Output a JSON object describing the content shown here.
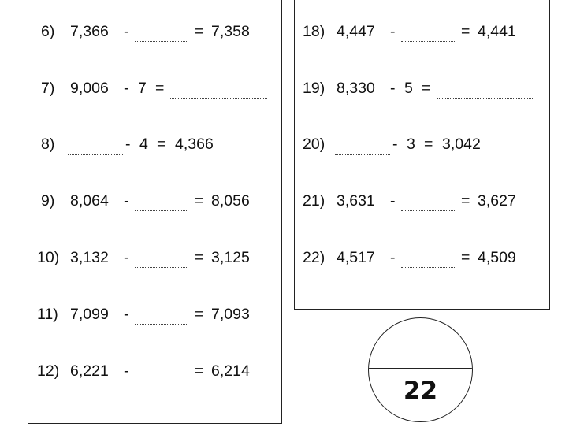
{
  "left_column": [
    {
      "number": "6)",
      "a": "7,366",
      "op": "-",
      "b": "",
      "eq": "=",
      "result": "7,358"
    },
    {
      "number": "7)",
      "a": "9,006",
      "op": "-",
      "b": "7",
      "eq": "=",
      "result": ""
    },
    {
      "number": "8)",
      "a": "",
      "op": "-",
      "b": "4",
      "eq": "=",
      "result": "4,366"
    },
    {
      "number": "9)",
      "a": "8,064",
      "op": "-",
      "b": "",
      "eq": "=",
      "result": "8,056"
    },
    {
      "number": "10)",
      "a": "3,132",
      "op": "-",
      "b": "",
      "eq": "=",
      "result": "3,125"
    },
    {
      "number": "11)",
      "a": "7,099",
      "op": "-",
      "b": "",
      "eq": "=",
      "result": "7,093"
    },
    {
      "number": "12)",
      "a": "6,221",
      "op": "-",
      "b": "",
      "eq": "=",
      "result": "6,214"
    }
  ],
  "right_column": [
    {
      "number": "18)",
      "a": "4,447",
      "op": "-",
      "b": "",
      "eq": "=",
      "result": "4,441"
    },
    {
      "number": "19)",
      "a": "8,330",
      "op": "-",
      "b": "5",
      "eq": "=",
      "result": ""
    },
    {
      "number": "20)",
      "a": "",
      "op": "-",
      "b": "3",
      "eq": "=",
      "result": "3,042"
    },
    {
      "number": "21)",
      "a": "3,631",
      "op": "-",
      "b": "",
      "eq": "=",
      "result": "3,627"
    },
    {
      "number": "22)",
      "a": "4,517",
      "op": "-",
      "b": "",
      "eq": "=",
      "result": "4,509"
    }
  ],
  "score": {
    "score_value": "",
    "total": "22"
  }
}
